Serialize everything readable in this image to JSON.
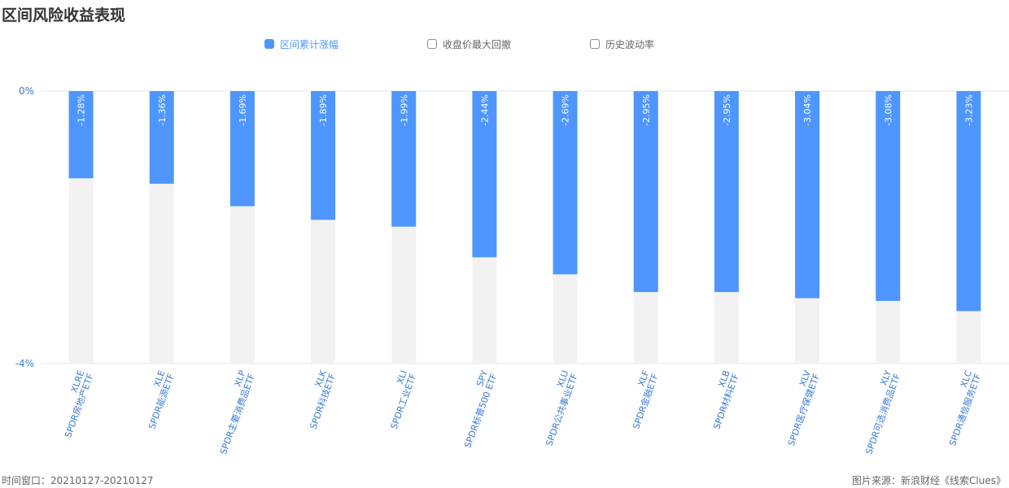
{
  "header": {
    "title": "区间风险收益表现"
  },
  "legend": [
    {
      "label": "区间累计涨幅",
      "active": true
    },
    {
      "label": "收盘价最大回撤",
      "active": false
    },
    {
      "label": "历史波动率",
      "active": false
    }
  ],
  "footer": {
    "window": "时间窗口：20210127-20210127",
    "source": "图片来源：新浪财经《线索Clues》"
  },
  "colors": {
    "bar": "#4e96fd",
    "background_bar": "#f2f2f2",
    "axis_text": "#3a7bd5",
    "gridline": "#d6e8f7"
  },
  "chart_data": {
    "type": "bar",
    "title": "区间风险收益表现",
    "xlabel": "",
    "ylabel": "",
    "ylim": [
      -4,
      0
    ],
    "y_ticks": [
      "0%",
      "-4%"
    ],
    "categories": [
      {
        "code": "XLRE",
        "name": "SPDR房地产ETF"
      },
      {
        "code": "XLE",
        "name": "SPDR能源ETF"
      },
      {
        "code": "XLP",
        "name": "SPDR主要消费品ETF"
      },
      {
        "code": "XLK",
        "name": "SPDR科技ETF"
      },
      {
        "code": "XLI",
        "name": "SPDR工业ETF"
      },
      {
        "code": "SPY",
        "name": "SPDR标普500 ETF"
      },
      {
        "code": "XLU",
        "name": "SPDR公共事业ETF"
      },
      {
        "code": "XLF",
        "name": "SPDR金融ETF"
      },
      {
        "code": "XLB",
        "name": "SPDR材料ETF"
      },
      {
        "code": "XLV",
        "name": "SPDR医疗保健ETF"
      },
      {
        "code": "XLY",
        "name": "SPDR可选消费品ETF"
      },
      {
        "code": "XLC",
        "name": "SPDR通信服务ETF"
      }
    ],
    "series": [
      {
        "name": "区间累计涨幅",
        "values": [
          -1.28,
          -1.36,
          -1.69,
          -1.89,
          -1.99,
          -2.44,
          -2.69,
          -2.95,
          -2.95,
          -3.04,
          -3.08,
          -3.23
        ],
        "labels": [
          "-1.28%",
          "-1.36%",
          "-1.69%",
          "-1.89%",
          "-1.99%",
          "-2.44%",
          "-2.69%",
          "-2.95%",
          "-2.95%",
          "-3.04%",
          "-3.08%",
          "-3.23%"
        ]
      }
    ],
    "grid": false,
    "legend_position": "top-center"
  }
}
